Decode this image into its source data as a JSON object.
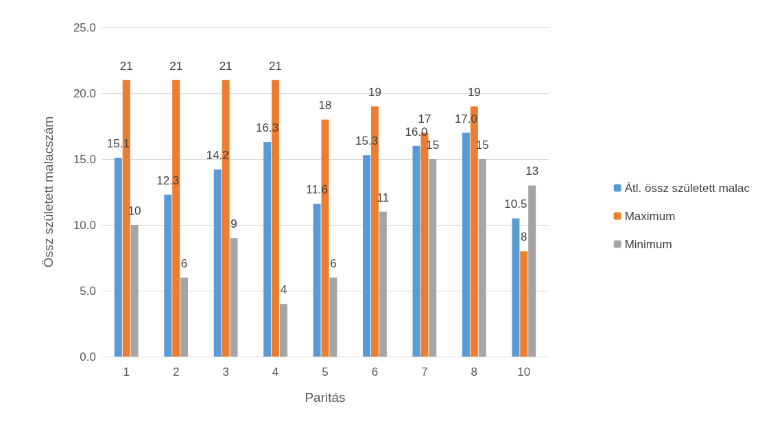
{
  "chart_data": {
    "type": "bar",
    "xlabel": "Paritás",
    "ylabel": "Össz született malacszám",
    "categories": [
      "1",
      "2",
      "3",
      "4",
      "5",
      "6",
      "7",
      "8",
      "10"
    ],
    "series": [
      {
        "name": "Átl. össz született malac",
        "color": "#5b9bd5",
        "values": [
          15.1,
          12.3,
          14.2,
          16.3,
          11.6,
          15.3,
          16.0,
          17.0,
          10.5
        ],
        "value_labels": [
          "15.1",
          "12.3",
          "14.2",
          "16.3",
          "11.6",
          "15.3",
          "16.0",
          "17.0",
          "10.5"
        ]
      },
      {
        "name": "Maximum",
        "color": "#ed7d31",
        "values": [
          21,
          21,
          21,
          21,
          18,
          19,
          17,
          19,
          8
        ],
        "value_labels": [
          "21",
          "21",
          "21",
          "21",
          "18",
          "19",
          "17",
          "19",
          "8"
        ]
      },
      {
        "name": "Minimum",
        "color": "#a5a5a5",
        "values": [
          10,
          6,
          9,
          4,
          6,
          11,
          15,
          15,
          13
        ],
        "value_labels": [
          "10",
          "6",
          "9",
          "4",
          "6",
          "11",
          "15",
          "15",
          "13"
        ]
      }
    ],
    "ylim": [
      0,
      25
    ],
    "yticks": [
      {
        "value": 0,
        "label": "0.0"
      },
      {
        "value": 5,
        "label": "5.0"
      },
      {
        "value": 10,
        "label": "10.0"
      },
      {
        "value": 15,
        "label": "15.0"
      },
      {
        "value": 20,
        "label": "20.0"
      },
      {
        "value": 25,
        "label": "25.0"
      }
    ],
    "grid": "y",
    "legend": "right"
  }
}
